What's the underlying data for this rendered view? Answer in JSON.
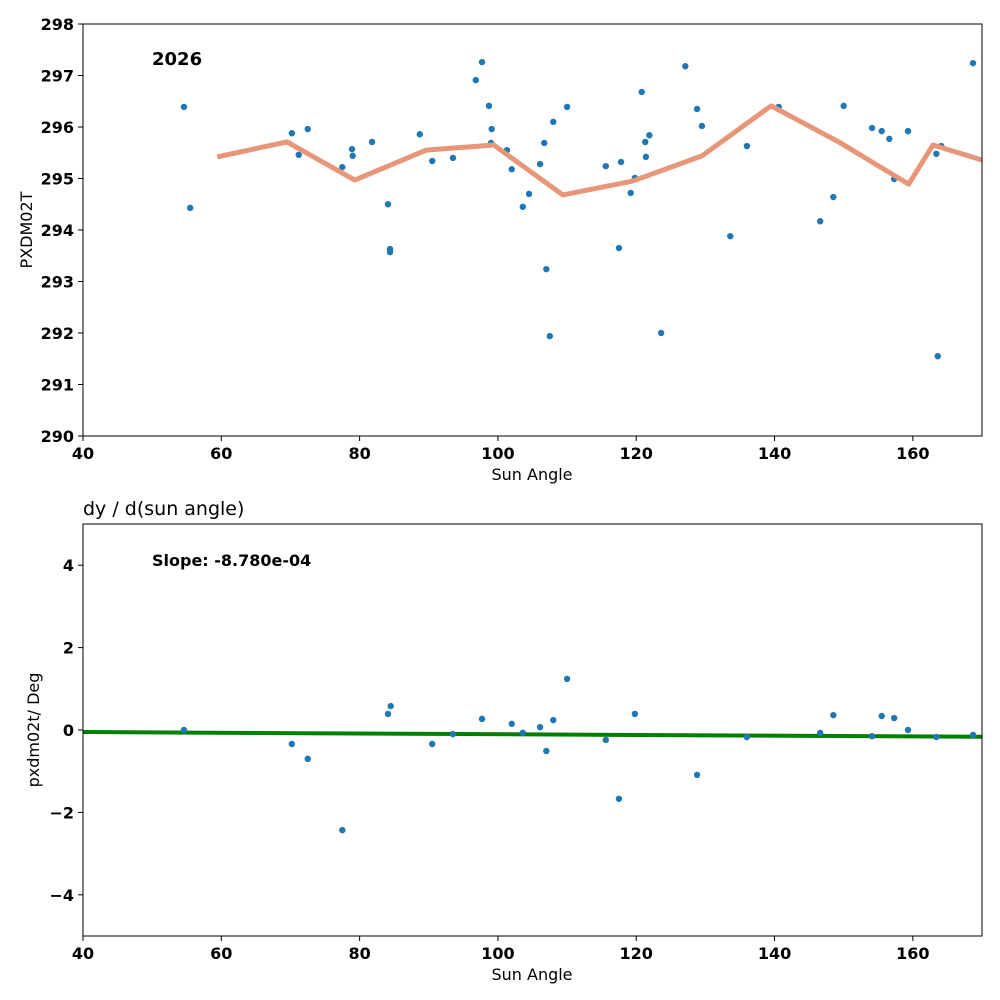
{
  "chart_data": [
    {
      "type": "scatter",
      "annotation": "2026",
      "xlabel": "Sun Angle",
      "ylabel": "PXDM02T",
      "xlim": [
        40,
        170
      ],
      "ylim": [
        290,
        298
      ],
      "xticks": [
        "40",
        "60",
        "80",
        "100",
        "120",
        "140",
        "160"
      ],
      "yticks": [
        "290",
        "291",
        "292",
        "293",
        "294",
        "295",
        "296",
        "297",
        "298"
      ],
      "point_color": "#1f77b4",
      "line_color": "#e8967a",
      "points": [
        [
          54.6,
          296.39
        ],
        [
          55.5,
          294.43
        ],
        [
          70.2,
          295.88
        ],
        [
          71.2,
          295.46
        ],
        [
          72.5,
          295.96
        ],
        [
          77.5,
          295.22
        ],
        [
          78.9,
          295.57
        ],
        [
          79.0,
          295.44
        ],
        [
          81.8,
          295.71
        ],
        [
          84.1,
          294.5
        ],
        [
          84.4,
          293.63
        ],
        [
          84.4,
          293.57
        ],
        [
          88.7,
          295.86
        ],
        [
          90.5,
          295.34
        ],
        [
          93.5,
          295.4
        ],
        [
          96.8,
          296.91
        ],
        [
          97.7,
          297.26
        ],
        [
          98.7,
          296.41
        ],
        [
          99.1,
          295.96
        ],
        [
          99.0,
          295.69
        ],
        [
          101.3,
          295.55
        ],
        [
          102.0,
          295.18
        ],
        [
          103.6,
          294.45
        ],
        [
          104.5,
          294.7
        ],
        [
          106.1,
          295.28
        ],
        [
          106.7,
          295.69
        ],
        [
          107.0,
          293.24
        ],
        [
          107.5,
          291.94
        ],
        [
          108.0,
          296.1
        ],
        [
          110.0,
          296.39
        ],
        [
          115.6,
          295.24
        ],
        [
          117.5,
          293.65
        ],
        [
          117.8,
          295.32
        ],
        [
          119.2,
          294.72
        ],
        [
          119.8,
          295.01
        ],
        [
          120.8,
          296.68
        ],
        [
          121.3,
          295.71
        ],
        [
          121.4,
          295.42
        ],
        [
          121.9,
          295.84
        ],
        [
          123.6,
          292.0
        ],
        [
          127.1,
          297.18
        ],
        [
          128.8,
          296.35
        ],
        [
          129.5,
          296.02
        ],
        [
          133.6,
          293.88
        ],
        [
          136.0,
          295.63
        ],
        [
          140.6,
          296.39
        ],
        [
          146.6,
          294.17
        ],
        [
          148.5,
          294.64
        ],
        [
          150.0,
          296.41
        ],
        [
          154.1,
          295.98
        ],
        [
          155.5,
          295.92
        ],
        [
          156.6,
          295.77
        ],
        [
          157.3,
          294.99
        ],
        [
          159.3,
          295.92
        ],
        [
          163.4,
          295.48
        ],
        [
          163.6,
          291.55
        ],
        [
          164.1,
          295.63
        ],
        [
          168.7,
          297.24
        ]
      ],
      "line": [
        [
          59.4,
          295.42
        ],
        [
          69.5,
          295.71
        ],
        [
          79.3,
          294.97
        ],
        [
          89.6,
          295.55
        ],
        [
          99.4,
          295.65
        ],
        [
          109.4,
          294.68
        ],
        [
          119.5,
          294.95
        ],
        [
          129.5,
          295.44
        ],
        [
          139.5,
          296.41
        ],
        [
          149.3,
          295.71
        ],
        [
          159.4,
          294.89
        ],
        [
          162.9,
          295.65
        ],
        [
          170,
          295.36
        ]
      ]
    },
    {
      "type": "scatter",
      "title": "dy / d(sun angle)",
      "annotation": "Slope: -8.780e-04",
      "xlabel": "Sun Angle",
      "ylabel": "pxdm02t/ Deg",
      "xlim": [
        40,
        170
      ],
      "ylim": [
        -5,
        5
      ],
      "xticks": [
        "40",
        "60",
        "80",
        "100",
        "120",
        "140",
        "160"
      ],
      "yticks": [
        "−4",
        "−2",
        "0",
        "2",
        "4"
      ],
      "ytick_values": [
        -4,
        -2,
        0,
        2,
        4
      ],
      "point_color": "#1f77b4",
      "line_color": "#008000",
      "points": [
        [
          54.6,
          0.0
        ],
        [
          70.2,
          -0.34
        ],
        [
          72.5,
          -0.7
        ],
        [
          77.5,
          -2.43
        ],
        [
          84.1,
          0.39
        ],
        [
          84.5,
          0.58
        ],
        [
          90.5,
          -0.34
        ],
        [
          93.5,
          -0.1
        ],
        [
          97.7,
          0.27
        ],
        [
          102.0,
          0.15
        ],
        [
          103.6,
          -0.07
        ],
        [
          106.1,
          0.07
        ],
        [
          107.0,
          -0.51
        ],
        [
          108.0,
          0.24
        ],
        [
          110.0,
          1.24
        ],
        [
          115.6,
          -0.24
        ],
        [
          117.5,
          -1.67
        ],
        [
          119.8,
          0.39
        ],
        [
          128.8,
          -1.09
        ],
        [
          136.0,
          -0.17
        ],
        [
          146.6,
          -0.07
        ],
        [
          148.5,
          0.36
        ],
        [
          154.1,
          -0.15
        ],
        [
          155.5,
          0.34
        ],
        [
          157.3,
          0.29
        ],
        [
          159.3,
          0.0
        ],
        [
          163.4,
          -0.17
        ],
        [
          168.7,
          -0.12
        ]
      ],
      "line": [
        [
          40,
          -0.05
        ],
        [
          170,
          -0.164
        ]
      ]
    }
  ]
}
